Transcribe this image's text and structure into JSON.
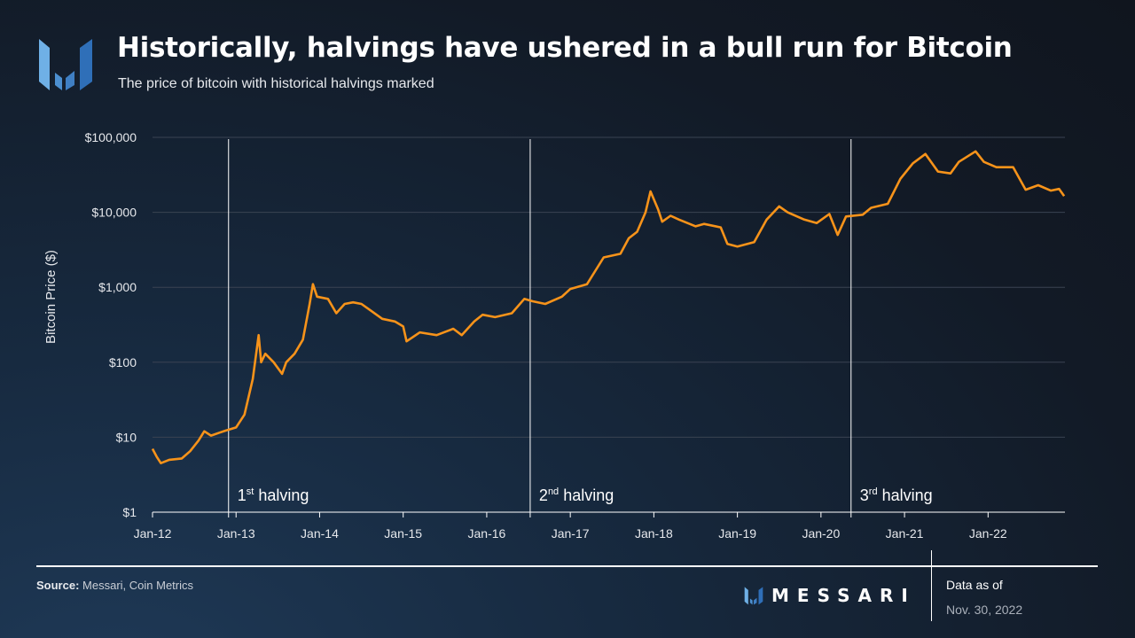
{
  "header": {
    "title": "Historically, halvings have ushered in a bull run for Bitcoin",
    "subtitle": "The price of bitcoin with historical halvings marked"
  },
  "footer": {
    "source_label": "Source:",
    "source_text": "Messari, Coin Metrics",
    "brand": "MESSARI",
    "data_as_of_label": "Data as of",
    "data_as_of_date": "Nov. 30, 2022"
  },
  "colors": {
    "line": "#f7931a",
    "grid": "#3a4352",
    "axis": "#ffffff"
  },
  "chart_data": {
    "type": "line",
    "title": "Historically, halvings have ushered in a bull run for Bitcoin",
    "ylabel": "Bitcoin Price ($)",
    "xlabel": "",
    "yscale": "log",
    "ylim": [
      1,
      100000
    ],
    "xlim": [
      2012.0,
      2022.92
    ],
    "yticks": [
      {
        "v": 1,
        "label": "$1"
      },
      {
        "v": 10,
        "label": "$10"
      },
      {
        "v": 100,
        "label": "$100"
      },
      {
        "v": 1000,
        "label": "$1,000"
      },
      {
        "v": 10000,
        "label": "$10,000"
      },
      {
        "v": 100000,
        "label": "$100,000"
      }
    ],
    "xticks": [
      {
        "v": 2012,
        "label": "Jan-12"
      },
      {
        "v": 2013,
        "label": "Jan-13"
      },
      {
        "v": 2014,
        "label": "Jan-14"
      },
      {
        "v": 2015,
        "label": "Jan-15"
      },
      {
        "v": 2016,
        "label": "Jan-16"
      },
      {
        "v": 2017,
        "label": "Jan-17"
      },
      {
        "v": 2018,
        "label": "Jan-18"
      },
      {
        "v": 2019,
        "label": "Jan-19"
      },
      {
        "v": 2020,
        "label": "Jan-20"
      },
      {
        "v": 2021,
        "label": "Jan-21"
      },
      {
        "v": 2022,
        "label": "Jan-22"
      }
    ],
    "halvings": [
      {
        "x": 2012.91,
        "ord": "1",
        "sup": "st",
        "text": " halving"
      },
      {
        "x": 2016.52,
        "ord": "2",
        "sup": "nd",
        "text": " halving"
      },
      {
        "x": 2020.36,
        "ord": "3",
        "sup": "rd",
        "text": " halving"
      }
    ],
    "series": [
      {
        "name": "Bitcoin Price",
        "x": [
          2012.0,
          2012.05,
          2012.1,
          2012.2,
          2012.35,
          2012.45,
          2012.55,
          2012.62,
          2012.7,
          2012.8,
          2012.9,
          2013.0,
          2013.1,
          2013.2,
          2013.27,
          2013.3,
          2013.35,
          2013.45,
          2013.55,
          2013.6,
          2013.7,
          2013.8,
          2013.88,
          2013.92,
          2013.97,
          2014.1,
          2014.2,
          2014.3,
          2014.4,
          2014.5,
          2014.6,
          2014.75,
          2014.9,
          2015.0,
          2015.04,
          2015.2,
          2015.4,
          2015.6,
          2015.7,
          2015.85,
          2015.95,
          2016.1,
          2016.3,
          2016.45,
          2016.55,
          2016.7,
          2016.9,
          2017.0,
          2017.2,
          2017.4,
          2017.6,
          2017.7,
          2017.8,
          2017.9,
          2017.96,
          2018.05,
          2018.1,
          2018.2,
          2018.3,
          2018.5,
          2018.6,
          2018.8,
          2018.88,
          2019.0,
          2019.2,
          2019.35,
          2019.5,
          2019.6,
          2019.8,
          2019.95,
          2020.1,
          2020.2,
          2020.3,
          2020.5,
          2020.6,
          2020.8,
          2020.95,
          2021.1,
          2021.25,
          2021.4,
          2021.55,
          2021.65,
          2021.85,
          2021.95,
          2022.1,
          2022.3,
          2022.45,
          2022.6,
          2022.75,
          2022.85,
          2022.91
        ],
        "y": [
          7,
          5.5,
          4.5,
          5,
          5.2,
          6.5,
          9,
          12,
          10.5,
          11.5,
          12.5,
          13.5,
          20,
          60,
          230,
          100,
          130,
          100,
          70,
          100,
          130,
          200,
          600,
          1100,
          750,
          700,
          450,
          600,
          630,
          600,
          500,
          380,
          350,
          300,
          190,
          250,
          230,
          280,
          230,
          350,
          430,
          400,
          450,
          700,
          650,
          600,
          750,
          950,
          1100,
          2500,
          2800,
          4500,
          5500,
          10000,
          19000,
          11000,
          7500,
          9000,
          8000,
          6500,
          7000,
          6300,
          3800,
          3500,
          4000,
          8000,
          12000,
          10000,
          8000,
          7200,
          9500,
          5000,
          8800,
          9300,
          11500,
          13000,
          28000,
          45000,
          60000,
          35000,
          33000,
          47000,
          65000,
          47000,
          40000,
          40000,
          20000,
          23000,
          19500,
          20500,
          16500
        ]
      }
    ]
  }
}
